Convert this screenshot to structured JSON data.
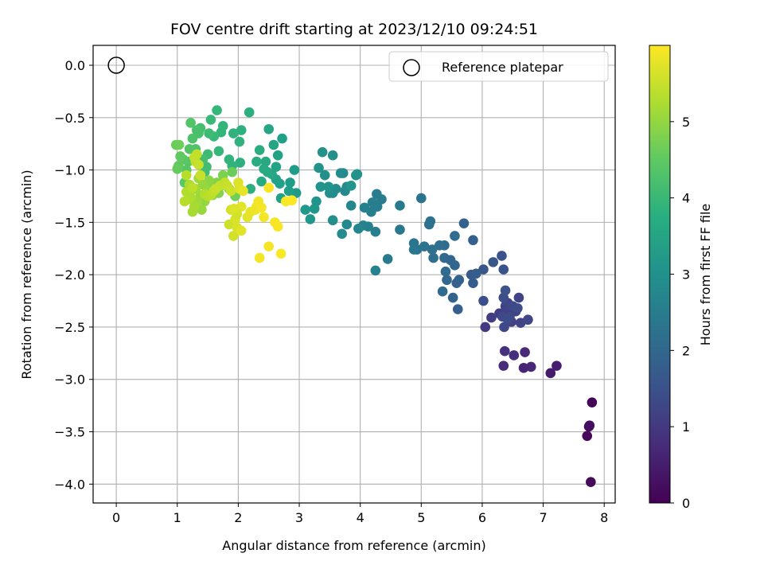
{
  "chart_data": {
    "type": "scatter",
    "title": "FOV centre drift starting at 2023/12/10 09:24:51",
    "xlabel": "Angular distance from reference (arcmin)",
    "ylabel": "Rotation from reference (arcmin)",
    "xlim": [
      -0.38,
      8.18
    ],
    "ylim": [
      -4.18,
      0.19
    ],
    "x_ticks": [
      0,
      1,
      2,
      3,
      4,
      5,
      6,
      7,
      8
    ],
    "y_ticks": [
      0.0,
      -0.5,
      -1.0,
      -1.5,
      -2.0,
      -2.5,
      -3.0,
      -3.5,
      -4.0
    ],
    "x_tick_labels": [
      "0",
      "1",
      "2",
      "3",
      "4",
      "5",
      "6",
      "7",
      "8"
    ],
    "y_tick_labels": [
      "0.0",
      "−0.5",
      "−1.0",
      "−1.5",
      "−2.0",
      "−2.5",
      "−3.0",
      "−3.5",
      "−4.0"
    ],
    "grid": true,
    "legend": {
      "position": "top-right",
      "entries": [
        "Reference platepar"
      ]
    },
    "colorbar": {
      "label": "Hours from first FF file",
      "colormap": "viridis",
      "range": [
        0,
        6
      ],
      "ticks": [
        0,
        1,
        2,
        3,
        4,
        5
      ],
      "tick_labels": [
        "0",
        "1",
        "2",
        "3",
        "4",
        "5"
      ]
    },
    "reference_point": {
      "x": 0,
      "y": 0
    },
    "series": [
      {
        "color_value": "hours",
        "points": [
          [
            7.8,
            -3.22,
            0.05
          ],
          [
            7.75,
            -3.45,
            0.1
          ],
          [
            7.72,
            -3.54,
            0.12
          ],
          [
            7.78,
            -3.98,
            0.15
          ],
          [
            7.76,
            -3.44,
            0.2
          ],
          [
            7.12,
            -2.94,
            0.45
          ],
          [
            7.22,
            -2.87,
            0.5
          ],
          [
            6.68,
            -2.89,
            0.6
          ],
          [
            6.8,
            -2.88,
            0.65
          ],
          [
            6.7,
            -2.74,
            0.7
          ],
          [
            6.35,
            -2.87,
            0.75
          ],
          [
            6.52,
            -2.77,
            0.8
          ],
          [
            6.37,
            -2.73,
            0.85
          ],
          [
            6.05,
            -2.5,
            1.0
          ],
          [
            6.15,
            -2.41,
            1.05
          ],
          [
            6.28,
            -2.37,
            1.1
          ],
          [
            6.4,
            -2.35,
            1.1
          ],
          [
            6.48,
            -2.45,
            1.15
          ],
          [
            6.55,
            -2.35,
            1.15
          ],
          [
            6.6,
            -2.22,
            1.2
          ],
          [
            6.63,
            -2.46,
            1.2
          ],
          [
            6.75,
            -2.43,
            1.25
          ],
          [
            6.38,
            -2.3,
            1.2
          ],
          [
            6.42,
            -2.27,
            1.25
          ],
          [
            6.5,
            -2.3,
            1.3
          ],
          [
            6.33,
            -2.4,
            1.3
          ],
          [
            6.45,
            -2.4,
            1.3
          ],
          [
            6.36,
            -2.5,
            1.3
          ],
          [
            6.42,
            -2.43,
            1.35
          ],
          [
            6.58,
            -2.32,
            1.35
          ],
          [
            6.35,
            -2.22,
            1.4
          ],
          [
            6.02,
            -2.25,
            1.45
          ],
          [
            6.32,
            -1.82,
            1.5
          ],
          [
            6.35,
            -1.95,
            1.55
          ],
          [
            6.38,
            -2.15,
            1.5
          ],
          [
            6.18,
            -1.88,
            1.6
          ],
          [
            6.02,
            -1.95,
            1.65
          ],
          [
            5.85,
            -2.08,
            1.7
          ],
          [
            5.82,
            -2.0,
            1.7
          ],
          [
            5.9,
            -1.99,
            1.75
          ],
          [
            5.85,
            -1.67,
            1.8
          ],
          [
            5.7,
            -1.51,
            1.85
          ],
          [
            5.6,
            -2.33,
            1.8
          ],
          [
            5.58,
            -2.08,
            1.85
          ],
          [
            5.62,
            -2.05,
            1.85
          ],
          [
            5.52,
            -2.22,
            1.9
          ],
          [
            5.55,
            -1.91,
            1.95
          ],
          [
            5.48,
            -1.86,
            1.95
          ],
          [
            5.38,
            -1.84,
            2.0
          ],
          [
            5.42,
            -2.05,
            2.0
          ],
          [
            5.4,
            -1.97,
            2.05
          ],
          [
            5.35,
            -2.16,
            2.05
          ],
          [
            5.55,
            -1.63,
            2.1
          ],
          [
            5.38,
            -1.72,
            2.1
          ],
          [
            5.3,
            -1.72,
            2.15
          ],
          [
            5.2,
            -1.84,
            2.15
          ],
          [
            5.18,
            -1.76,
            2.2
          ],
          [
            5.13,
            -1.52,
            2.2
          ],
          [
            5.15,
            -1.49,
            2.25
          ],
          [
            5.05,
            -1.73,
            2.25
          ],
          [
            5.0,
            -1.27,
            2.3
          ],
          [
            4.93,
            -1.76,
            2.3
          ],
          [
            4.88,
            -1.7,
            2.35
          ],
          [
            4.88,
            -1.76,
            2.4
          ],
          [
            4.65,
            -1.57,
            2.4
          ],
          [
            4.65,
            -1.34,
            2.45
          ],
          [
            4.45,
            -1.85,
            2.45
          ],
          [
            4.35,
            -1.28,
            2.5
          ],
          [
            4.27,
            -1.23,
            2.5
          ],
          [
            4.28,
            -1.35,
            2.55
          ],
          [
            4.25,
            -1.59,
            2.55
          ],
          [
            4.2,
            -1.31,
            2.6
          ],
          [
            4.18,
            -1.4,
            2.6
          ],
          [
            4.13,
            -1.54,
            2.65
          ],
          [
            4.07,
            -1.36,
            2.65
          ],
          [
            4.25,
            -1.96,
            2.7
          ],
          [
            4.05,
            -1.53,
            2.7
          ],
          [
            3.97,
            -1.56,
            2.75
          ],
          [
            3.85,
            -1.34,
            2.75
          ],
          [
            3.78,
            -1.52,
            2.8
          ],
          [
            3.75,
            -1.2,
            2.8
          ],
          [
            3.7,
            -1.61,
            2.85
          ],
          [
            3.78,
            -1.16,
            2.85
          ],
          [
            3.72,
            -1.03,
            2.85
          ],
          [
            3.68,
            -1.03,
            2.9
          ],
          [
            3.6,
            -1.18,
            2.9
          ],
          [
            3.55,
            -1.22,
            2.9
          ],
          [
            3.55,
            -1.48,
            2.95
          ],
          [
            3.5,
            -1.22,
            2.95
          ],
          [
            3.55,
            -0.86,
            3.0
          ],
          [
            3.42,
            -1.05,
            3.0
          ],
          [
            3.38,
            -0.83,
            3.05
          ],
          [
            3.32,
            -0.98,
            3.05
          ],
          [
            3.35,
            -1.16,
            3.1
          ],
          [
            3.28,
            -1.3,
            3.1
          ],
          [
            3.25,
            -1.37,
            3.15
          ],
          [
            3.18,
            -1.47,
            3.15
          ],
          [
            3.1,
            -1.38,
            3.2
          ],
          [
            3.95,
            -1.04,
            3.0
          ],
          [
            3.93,
            -1.05,
            3.05
          ],
          [
            3.48,
            -1.16,
            3.1
          ],
          [
            3.85,
            -1.15,
            3.1
          ],
          [
            2.95,
            -1.22,
            3.25
          ],
          [
            2.92,
            -1.0,
            3.3
          ],
          [
            2.85,
            -1.12,
            3.3
          ],
          [
            2.83,
            -1.2,
            3.35
          ],
          [
            2.72,
            -0.7,
            3.35
          ],
          [
            2.7,
            -1.27,
            3.4
          ],
          [
            2.68,
            -1.13,
            3.4
          ],
          [
            2.62,
            -1.09,
            3.45
          ],
          [
            2.65,
            -0.86,
            3.45
          ],
          [
            2.62,
            -0.97,
            3.5
          ],
          [
            2.58,
            -0.76,
            3.5
          ],
          [
            2.55,
            -1.04,
            3.55
          ],
          [
            2.5,
            -0.61,
            3.55
          ],
          [
            2.48,
            -1.02,
            3.6
          ],
          [
            2.45,
            -0.92,
            3.6
          ],
          [
            2.42,
            -0.99,
            3.65
          ],
          [
            2.38,
            -1.11,
            3.65
          ],
          [
            2.35,
            -0.81,
            3.7
          ],
          [
            2.3,
            -0.92,
            3.7
          ],
          [
            2.2,
            -1.18,
            3.75
          ],
          [
            2.18,
            -0.45,
            3.75
          ],
          [
            2.05,
            -0.62,
            3.8
          ],
          [
            2.03,
            -0.93,
            3.8
          ],
          [
            2.02,
            -0.73,
            3.85
          ],
          [
            1.92,
            -0.65,
            3.85
          ],
          [
            1.9,
            -0.96,
            3.9
          ],
          [
            1.85,
            -0.9,
            3.9
          ],
          [
            1.75,
            -0.58,
            3.95
          ],
          [
            1.72,
            -0.64,
            3.95
          ],
          [
            1.65,
            -0.43,
            4.0
          ],
          [
            1.68,
            -0.82,
            4.0
          ],
          [
            1.6,
            -0.68,
            4.05
          ],
          [
            1.55,
            -0.52,
            4.05
          ],
          [
            1.52,
            -0.65,
            4.1
          ],
          [
            1.5,
            -0.85,
            4.1
          ],
          [
            1.48,
            -0.97,
            4.15
          ],
          [
            1.45,
            -1.02,
            4.15
          ],
          [
            1.42,
            -0.9,
            4.2
          ],
          [
            1.38,
            -0.6,
            4.2
          ],
          [
            1.35,
            -0.65,
            4.25
          ],
          [
            1.32,
            -0.62,
            4.25
          ],
          [
            1.3,
            -0.8,
            4.3
          ],
          [
            1.25,
            -0.7,
            4.3
          ],
          [
            1.22,
            -0.55,
            4.35
          ],
          [
            1.2,
            -0.8,
            4.35
          ],
          [
            1.18,
            -0.92,
            4.4
          ],
          [
            1.15,
            -1.0,
            4.4
          ],
          [
            1.12,
            -1.12,
            4.45
          ],
          [
            1.1,
            -0.9,
            4.45
          ],
          [
            1.05,
            -0.87,
            4.5
          ],
          [
            1.02,
            -0.96,
            4.5
          ],
          [
            1.0,
            -0.99,
            4.55
          ],
          [
            0.98,
            -0.76,
            4.6
          ],
          [
            1.03,
            -0.76,
            4.65
          ],
          [
            1.95,
            -1.25,
            4.7
          ],
          [
            1.9,
            -1.02,
            4.65
          ],
          [
            1.85,
            -1.18,
            4.75
          ],
          [
            1.75,
            -1.05,
            4.8
          ],
          [
            1.72,
            -1.15,
            4.8
          ],
          [
            1.68,
            -1.22,
            4.85
          ],
          [
            1.65,
            -1.12,
            4.85
          ],
          [
            1.62,
            -1.19,
            4.9
          ],
          [
            1.58,
            -1.24,
            4.9
          ],
          [
            1.55,
            -1.17,
            4.95
          ],
          [
            1.52,
            -1.1,
            4.95
          ],
          [
            1.48,
            -1.2,
            5.0
          ],
          [
            1.45,
            -1.3,
            5.0
          ],
          [
            1.42,
            -1.14,
            5.05
          ],
          [
            1.4,
            -1.38,
            5.05
          ],
          [
            1.38,
            -1.24,
            5.1
          ],
          [
            1.35,
            -1.08,
            5.1
          ],
          [
            1.32,
            -1.3,
            5.15
          ],
          [
            1.3,
            -1.18,
            5.15
          ],
          [
            1.28,
            -1.35,
            5.2
          ],
          [
            1.25,
            -1.4,
            5.2
          ],
          [
            1.22,
            -1.26,
            5.25
          ],
          [
            1.2,
            -1.14,
            5.25
          ],
          [
            1.18,
            -1.28,
            5.3
          ],
          [
            1.15,
            -1.21,
            5.3
          ],
          [
            1.12,
            -1.3,
            5.35
          ],
          [
            1.15,
            -1.05,
            5.35
          ],
          [
            1.25,
            -1.17,
            5.4
          ],
          [
            1.3,
            -0.92,
            5.4
          ],
          [
            1.32,
            -0.85,
            5.45
          ],
          [
            1.28,
            -0.88,
            5.45
          ],
          [
            1.35,
            -0.95,
            5.5
          ],
          [
            1.38,
            -1.05,
            5.5
          ],
          [
            1.45,
            -1.23,
            5.3
          ],
          [
            1.5,
            -1.25,
            5.35
          ],
          [
            1.55,
            -1.24,
            5.4
          ],
          [
            1.6,
            -1.2,
            5.45
          ],
          [
            1.63,
            -1.18,
            5.5
          ],
          [
            1.7,
            -1.15,
            5.5
          ],
          [
            1.78,
            -1.12,
            5.45
          ],
          [
            1.82,
            -1.15,
            5.5
          ],
          [
            1.88,
            -1.2,
            5.55
          ],
          [
            1.85,
            -1.52,
            5.55
          ],
          [
            1.88,
            -1.38,
            5.6
          ],
          [
            1.92,
            -1.63,
            5.6
          ],
          [
            1.95,
            -1.47,
            5.65
          ],
          [
            1.98,
            -1.55,
            5.65
          ],
          [
            2.0,
            -1.12,
            5.7
          ],
          [
            2.02,
            -1.18,
            5.7
          ],
          [
            2.05,
            -1.35,
            5.75
          ],
          [
            2.05,
            -1.58,
            5.75
          ],
          [
            2.08,
            -1.2,
            5.8
          ],
          [
            1.98,
            -1.42,
            5.6
          ],
          [
            1.93,
            -1.37,
            5.7
          ],
          [
            2.15,
            -1.45,
            5.75
          ],
          [
            2.2,
            -1.4,
            5.8
          ],
          [
            2.28,
            -1.38,
            5.85
          ],
          [
            2.3,
            -1.35,
            5.85
          ],
          [
            2.33,
            -1.3,
            5.9
          ],
          [
            2.35,
            -1.84,
            5.9
          ],
          [
            2.38,
            -1.36,
            5.9
          ],
          [
            2.42,
            -1.45,
            5.92
          ],
          [
            2.5,
            -1.73,
            5.92
          ],
          [
            2.5,
            -1.17,
            5.95
          ],
          [
            2.6,
            -1.5,
            5.95
          ],
          [
            2.65,
            -1.54,
            5.95
          ],
          [
            2.7,
            -1.8,
            5.97
          ],
          [
            2.78,
            -1.3,
            5.97
          ],
          [
            2.88,
            -1.29,
            5.98
          ]
        ]
      }
    ]
  }
}
